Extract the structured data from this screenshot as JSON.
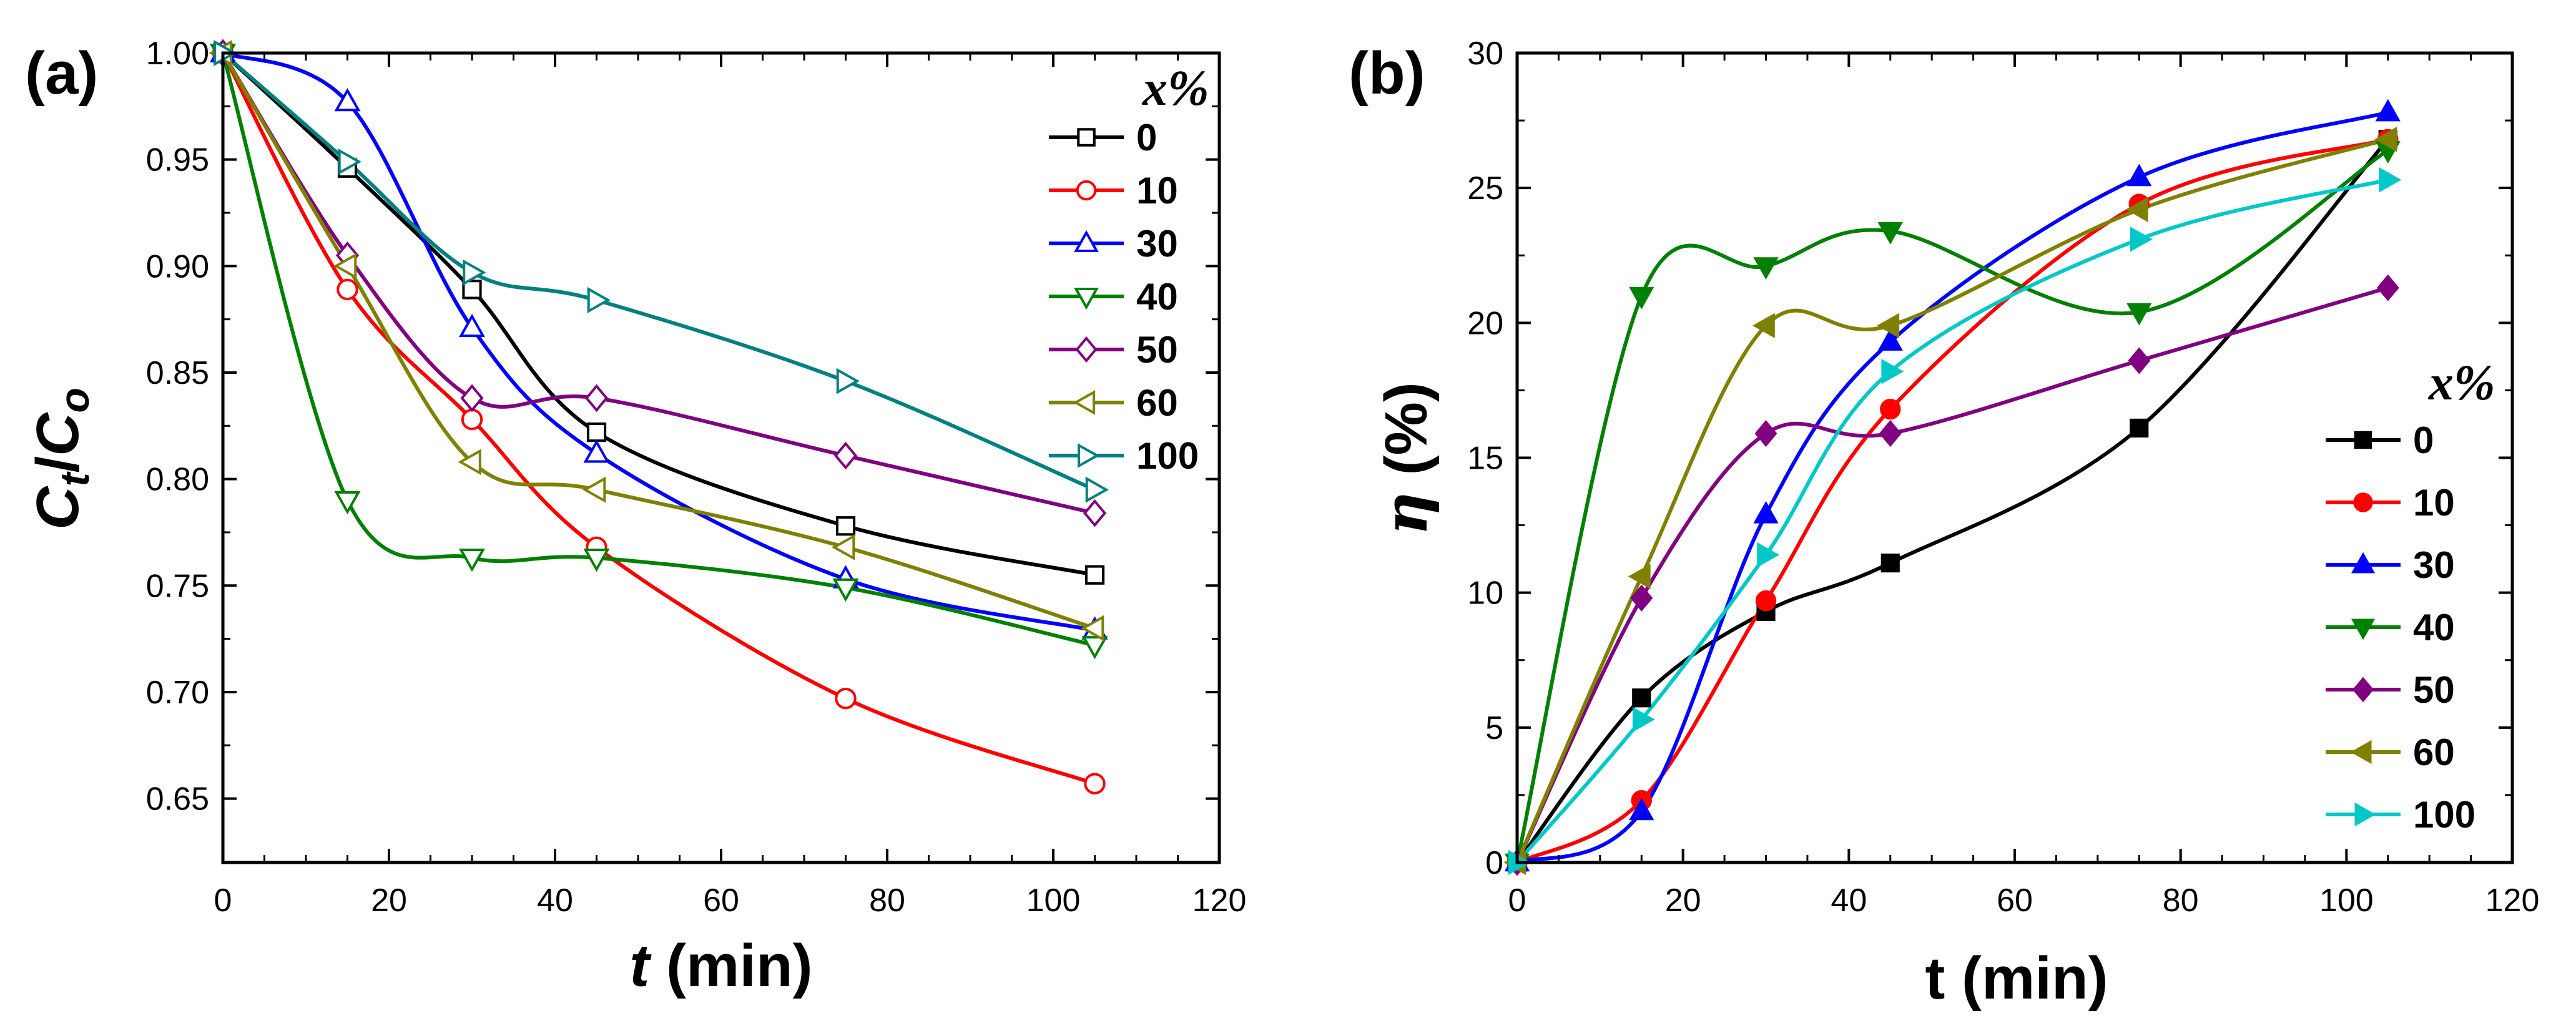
{
  "chart_data": [
    {
      "type": "line",
      "panel_label": "(a)",
      "xlabel_italic": "t",
      "xlabel_rest": " (min)",
      "ylabel_main1": "C",
      "ylabel_sub1": "t",
      "ylabel_slash": "/",
      "ylabel_main2": "C",
      "ylabel_sub2": "o",
      "xlim": [
        0,
        120
      ],
      "ylim": [
        0.62,
        1.0
      ],
      "xticks": [
        "0",
        "20",
        "40",
        "60",
        "80",
        "100",
        "120"
      ],
      "yticks": [
        "0.65",
        "0.70",
        "0.75",
        "0.80",
        "0.85",
        "0.90",
        "0.95",
        "1.00"
      ],
      "legend_title": "x%",
      "legend_position": "top-right",
      "marker_fill": "open",
      "x": [
        0,
        15,
        30,
        45,
        75,
        105
      ],
      "series": [
        {
          "name": "0",
          "color": "#000000",
          "marker": "square",
          "values": [
            1.0,
            0.946,
            0.889,
            0.822,
            0.778,
            0.755
          ]
        },
        {
          "name": "10",
          "color": "#ff0000",
          "marker": "circle",
          "values": [
            1.0,
            0.889,
            0.828,
            0.768,
            0.697,
            0.657
          ]
        },
        {
          "name": "30",
          "color": "#0000ff",
          "marker": "triangle-up",
          "values": [
            1.0,
            0.977,
            0.871,
            0.812,
            0.753,
            0.729
          ]
        },
        {
          "name": "40",
          "color": "#008000",
          "marker": "triangle-down",
          "values": [
            1.0,
            0.79,
            0.763,
            0.763,
            0.749,
            0.722
          ]
        },
        {
          "name": "50",
          "color": "#800080",
          "marker": "diamond",
          "values": [
            1.0,
            0.905,
            0.838,
            0.838,
            0.811,
            0.784
          ]
        },
        {
          "name": "60",
          "color": "#808000",
          "marker": "triangle-left",
          "values": [
            1.0,
            0.9,
            0.808,
            0.795,
            0.768,
            0.73
          ]
        },
        {
          "name": "100",
          "color": "#008080",
          "marker": "triangle-right",
          "values": [
            1.0,
            0.949,
            0.897,
            0.884,
            0.846,
            0.795
          ]
        }
      ]
    },
    {
      "type": "line",
      "panel_label": "(b)",
      "xlabel": "t (min)",
      "ylabel_italic": "η",
      "ylabel_rest": " (%)",
      "xlim": [
        0,
        120
      ],
      "ylim": [
        0,
        30
      ],
      "xticks": [
        "0",
        "20",
        "40",
        "60",
        "80",
        "100",
        "120"
      ],
      "yticks": [
        "0",
        "5",
        "10",
        "15",
        "20",
        "25",
        "30"
      ],
      "legend_title": "x%",
      "legend_position": "lower-right",
      "marker_fill": "filled",
      "x": [
        0,
        15,
        30,
        45,
        75,
        105
      ],
      "series": [
        {
          "name": "0",
          "color": "#000000",
          "marker": "square",
          "values": [
            0,
            6.1,
            9.3,
            11.1,
            16.1,
            26.8
          ]
        },
        {
          "name": "10",
          "color": "#ff0000",
          "marker": "circle",
          "values": [
            0,
            2.3,
            9.7,
            16.8,
            24.4,
            26.8
          ]
        },
        {
          "name": "30",
          "color": "#0000ff",
          "marker": "triangle-up",
          "values": [
            0,
            1.9,
            12.9,
            19.3,
            25.4,
            27.8
          ]
        },
        {
          "name": "40",
          "color": "#008000",
          "marker": "triangle-down",
          "values": [
            0,
            21.0,
            22.1,
            23.4,
            20.4,
            26.4
          ]
        },
        {
          "name": "50",
          "color": "#800080",
          "marker": "diamond",
          "values": [
            0,
            9.8,
            15.9,
            15.9,
            18.6,
            21.3
          ]
        },
        {
          "name": "60",
          "color": "#808000",
          "marker": "triangle-left",
          "values": [
            0,
            10.6,
            19.9,
            19.9,
            24.2,
            26.8
          ]
        },
        {
          "name": "100",
          "color": "#00c8c8",
          "marker": "triangle-right",
          "values": [
            0,
            5.3,
            11.4,
            18.2,
            23.1,
            25.3
          ]
        }
      ]
    }
  ]
}
